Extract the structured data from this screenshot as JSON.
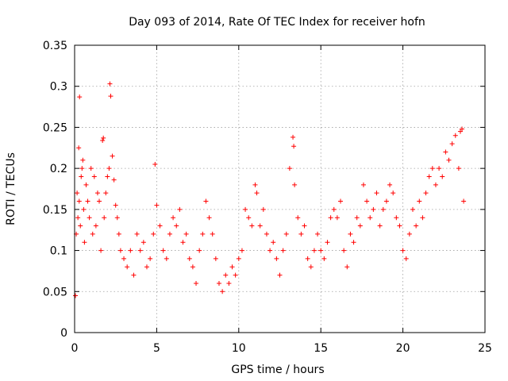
{
  "chart_data": {
    "type": "scatter",
    "title": "Day 093 of 2014, Rate Of TEC Index for receiver hofn",
    "xlabel": "GPS time / hours",
    "ylabel": "ROTI / TECUs",
    "xlim": [
      0,
      25
    ],
    "ylim": [
      0,
      0.35
    ],
    "xticks": [
      0,
      5,
      10,
      15,
      20,
      25
    ],
    "xtick_labels": [
      "0",
      "5",
      "10",
      "15",
      "20",
      "25"
    ],
    "yticks": [
      0,
      0.05,
      0.1,
      0.15,
      0.2,
      0.25,
      0.3,
      0.35
    ],
    "ytick_labels": [
      "0",
      "0.05",
      "0.1",
      "0.15",
      "0.2",
      "0.25",
      "0.3",
      "0.35"
    ],
    "grid": true,
    "marker": "plus",
    "series": [
      {
        "name": "ROTI",
        "color": "#ff0000",
        "points": [
          [
            0.05,
            0.045
          ],
          [
            0.1,
            0.12
          ],
          [
            0.15,
            0.17
          ],
          [
            0.2,
            0.14
          ],
          [
            0.25,
            0.225
          ],
          [
            0.28,
            0.16
          ],
          [
            0.3,
            0.287
          ],
          [
            0.35,
            0.13
          ],
          [
            0.4,
            0.19
          ],
          [
            0.45,
            0.2
          ],
          [
            0.5,
            0.21
          ],
          [
            0.55,
            0.15
          ],
          [
            0.6,
            0.11
          ],
          [
            0.7,
            0.18
          ],
          [
            0.8,
            0.16
          ],
          [
            0.9,
            0.14
          ],
          [
            1.0,
            0.2
          ],
          [
            1.1,
            0.12
          ],
          [
            1.2,
            0.19
          ],
          [
            1.3,
            0.13
          ],
          [
            1.4,
            0.17
          ],
          [
            1.5,
            0.16
          ],
          [
            1.6,
            0.1
          ],
          [
            1.7,
            0.234
          ],
          [
            1.75,
            0.237
          ],
          [
            1.8,
            0.14
          ],
          [
            1.9,
            0.17
          ],
          [
            2.0,
            0.19
          ],
          [
            2.1,
            0.2
          ],
          [
            2.15,
            0.303
          ],
          [
            2.2,
            0.288
          ],
          [
            2.3,
            0.215
          ],
          [
            2.4,
            0.186
          ],
          [
            2.5,
            0.155
          ],
          [
            2.6,
            0.14
          ],
          [
            2.7,
            0.12
          ],
          [
            2.8,
            0.1
          ],
          [
            3.0,
            0.09
          ],
          [
            3.2,
            0.08
          ],
          [
            3.4,
            0.1
          ],
          [
            3.6,
            0.07
          ],
          [
            3.8,
            0.12
          ],
          [
            4.0,
            0.1
          ],
          [
            4.2,
            0.11
          ],
          [
            4.4,
            0.08
          ],
          [
            4.6,
            0.09
          ],
          [
            4.8,
            0.12
          ],
          [
            4.9,
            0.205
          ],
          [
            5.0,
            0.155
          ],
          [
            5.2,
            0.13
          ],
          [
            5.4,
            0.1
          ],
          [
            5.6,
            0.09
          ],
          [
            5.8,
            0.12
          ],
          [
            6.0,
            0.14
          ],
          [
            6.2,
            0.13
          ],
          [
            6.4,
            0.15
          ],
          [
            6.6,
            0.11
          ],
          [
            6.8,
            0.12
          ],
          [
            7.0,
            0.09
          ],
          [
            7.2,
            0.08
          ],
          [
            7.4,
            0.06
          ],
          [
            7.6,
            0.1
          ],
          [
            7.8,
            0.12
          ],
          [
            8.0,
            0.16
          ],
          [
            8.2,
            0.14
          ],
          [
            8.4,
            0.12
          ],
          [
            8.6,
            0.09
          ],
          [
            8.8,
            0.06
          ],
          [
            9.0,
            0.05
          ],
          [
            9.2,
            0.07
          ],
          [
            9.4,
            0.06
          ],
          [
            9.6,
            0.08
          ],
          [
            9.8,
            0.07
          ],
          [
            10.0,
            0.09
          ],
          [
            10.2,
            0.1
          ],
          [
            10.4,
            0.15
          ],
          [
            10.6,
            0.14
          ],
          [
            10.8,
            0.13
          ],
          [
            11.0,
            0.18
          ],
          [
            11.1,
            0.17
          ],
          [
            11.3,
            0.13
          ],
          [
            11.5,
            0.15
          ],
          [
            11.7,
            0.12
          ],
          [
            11.9,
            0.1
          ],
          [
            12.1,
            0.11
          ],
          [
            12.3,
            0.09
          ],
          [
            12.5,
            0.07
          ],
          [
            12.7,
            0.1
          ],
          [
            12.9,
            0.12
          ],
          [
            13.1,
            0.2
          ],
          [
            13.3,
            0.238
          ],
          [
            13.35,
            0.227
          ],
          [
            13.4,
            0.18
          ],
          [
            13.6,
            0.14
          ],
          [
            13.8,
            0.12
          ],
          [
            14.0,
            0.13
          ],
          [
            14.2,
            0.09
          ],
          [
            14.4,
            0.08
          ],
          [
            14.6,
            0.1
          ],
          [
            14.8,
            0.12
          ],
          [
            15.0,
            0.1
          ],
          [
            15.2,
            0.09
          ],
          [
            15.4,
            0.11
          ],
          [
            15.6,
            0.14
          ],
          [
            15.8,
            0.15
          ],
          [
            16.0,
            0.14
          ],
          [
            16.2,
            0.16
          ],
          [
            16.4,
            0.1
          ],
          [
            16.6,
            0.08
          ],
          [
            16.8,
            0.12
          ],
          [
            17.0,
            0.11
          ],
          [
            17.2,
            0.14
          ],
          [
            17.4,
            0.13
          ],
          [
            17.6,
            0.18
          ],
          [
            17.8,
            0.16
          ],
          [
            18.0,
            0.14
          ],
          [
            18.2,
            0.15
          ],
          [
            18.4,
            0.17
          ],
          [
            18.6,
            0.13
          ],
          [
            18.8,
            0.15
          ],
          [
            19.0,
            0.16
          ],
          [
            19.2,
            0.18
          ],
          [
            19.4,
            0.17
          ],
          [
            19.6,
            0.14
          ],
          [
            19.8,
            0.13
          ],
          [
            20.0,
            0.1
          ],
          [
            20.2,
            0.09
          ],
          [
            20.4,
            0.12
          ],
          [
            20.6,
            0.15
          ],
          [
            20.8,
            0.13
          ],
          [
            21.0,
            0.16
          ],
          [
            21.2,
            0.14
          ],
          [
            21.4,
            0.17
          ],
          [
            21.6,
            0.19
          ],
          [
            21.8,
            0.2
          ],
          [
            22.0,
            0.18
          ],
          [
            22.2,
            0.2
          ],
          [
            22.4,
            0.19
          ],
          [
            22.6,
            0.22
          ],
          [
            22.8,
            0.21
          ],
          [
            23.0,
            0.23
          ],
          [
            23.2,
            0.24
          ],
          [
            23.4,
            0.2
          ],
          [
            23.5,
            0.245
          ],
          [
            23.6,
            0.248
          ],
          [
            23.7,
            0.16
          ]
        ]
      }
    ]
  }
}
